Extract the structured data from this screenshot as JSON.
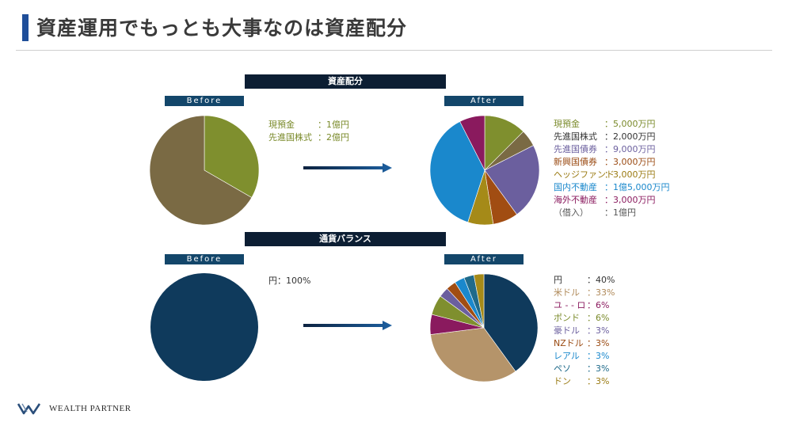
{
  "title": "資産運用でもっとも大事なのは資産配分",
  "footer": {
    "logo_text": "WEALTH PARTNER",
    "logo_icon": "w-logo-icon"
  },
  "asset": {
    "header": "資産配分",
    "before_label": "Before",
    "after_label": "After",
    "before_legend": [
      {
        "label": "現預金",
        "value": "：1億円",
        "color": "#7a8a2a"
      },
      {
        "label": "先進国株式",
        "value": "：2億円",
        "color": "#7a8a2a"
      }
    ],
    "after_legend": [
      {
        "label": "現預金",
        "value": "：5,000万円",
        "color": "#7a8a2a"
      },
      {
        "label": "先進国株式",
        "value": "：2,000万円",
        "color": "#333333"
      },
      {
        "label": "先進国債券",
        "value": "：9,000万円",
        "color": "#6b5f9e"
      },
      {
        "label": "新興国債券",
        "value": "：3,000万円",
        "color": "#9a4a12"
      },
      {
        "label": "ヘッジファンド",
        "value": "：3,000万円",
        "color": "#9a7a12"
      },
      {
        "label": "国内不動産",
        "value": "：1億5,000万円",
        "color": "#1a88cc"
      },
      {
        "label": "海外不動産",
        "value": "：3,000万円",
        "color": "#8a1a5e"
      },
      {
        "label": "（借入）",
        "value": "：1億円",
        "color": "#555555"
      }
    ]
  },
  "currency": {
    "header": "通貨バランス",
    "before_label": "Before",
    "after_label": "After",
    "before_legend": [
      {
        "label": "円",
        "value": "：100%",
        "color": "#333333"
      }
    ],
    "after_legend": [
      {
        "label": "円",
        "value": "：40%",
        "color": "#333333"
      },
      {
        "label": "米ドル",
        "value": "：33%",
        "color": "#b08a5a"
      },
      {
        "label": "ユ - - ロ",
        "value": "：6%",
        "color": "#8a1a5e"
      },
      {
        "label": "ポンド",
        "value": "：6%",
        "color": "#7a8a2a"
      },
      {
        "label": "豪ドル",
        "value": "：3%",
        "color": "#6b5f9e"
      },
      {
        "label": "NZドル",
        "value": "：3%",
        "color": "#9a4a12"
      },
      {
        "label": "レアル",
        "value": "：3%",
        "color": "#1a88cc"
      },
      {
        "label": "ペソ",
        "value": "：3%",
        "color": "#1f6a8a"
      },
      {
        "label": "ドン",
        "value": "：3%",
        "color": "#9a7a12"
      }
    ]
  },
  "chart_data": [
    {
      "type": "pie",
      "name": "asset-before",
      "categories": [
        "現預金",
        "先進国株式"
      ],
      "values": [
        1,
        2
      ],
      "colors": [
        "#7f8f2e",
        "#7a6a44"
      ],
      "start_angle_deg": 0
    },
    {
      "type": "pie",
      "name": "asset-after",
      "categories": [
        "現預金",
        "先進国株式",
        "先進国債券",
        "新興国債券",
        "ヘッジファンド",
        "国内不動産",
        "海外不動産"
      ],
      "values": [
        5000,
        2000,
        9000,
        3000,
        3000,
        15000,
        3000
      ],
      "colors": [
        "#7f8f2e",
        "#7a6a44",
        "#6b5f9e",
        "#a14d12",
        "#a58a18",
        "#1a88cc",
        "#8a1a5e"
      ],
      "start_angle_deg": 0
    },
    {
      "type": "pie",
      "name": "currency-before",
      "categories": [
        "円"
      ],
      "values": [
        100
      ],
      "colors": [
        "#0f3a5c"
      ],
      "start_angle_deg": 0
    },
    {
      "type": "pie",
      "name": "currency-after",
      "categories": [
        "円",
        "米ドル",
        "ユーロ",
        "ポンド",
        "豪ドル",
        "NZドル",
        "レアル",
        "ペソ",
        "ドン"
      ],
      "values": [
        40,
        33,
        6,
        6,
        3,
        3,
        3,
        3,
        3
      ],
      "colors": [
        "#0f3a5c",
        "#b5946a",
        "#8a1a5e",
        "#7f8f2e",
        "#6b5f9e",
        "#a14d12",
        "#1a88cc",
        "#1f6a8a",
        "#a58a18"
      ],
      "start_angle_deg": 0
    }
  ]
}
